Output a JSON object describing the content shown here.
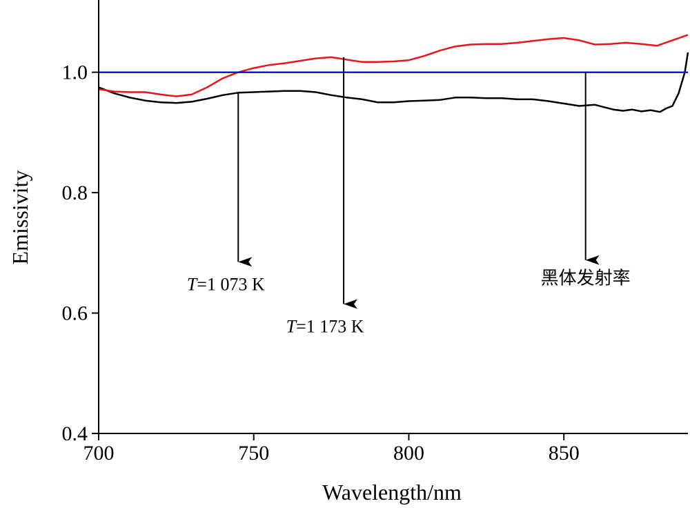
{
  "chart_data": {
    "type": "line",
    "title": "",
    "xlabel": "Wavelength/nm",
    "ylabel": "Emissivity",
    "xlim": [
      700,
      890
    ],
    "ylim": [
      0.4,
      1.12
    ],
    "x_ticks": [
      "700",
      "750",
      "800",
      "850"
    ],
    "y_ticks": [
      "0.4",
      "0.6",
      "0.8",
      "1.0"
    ],
    "grid": false,
    "series": [
      {
        "color": "#000000",
        "points": [
          [
            700,
            0.975
          ],
          [
            705,
            0.965
          ],
          [
            710,
            0.958
          ],
          [
            715,
            0.953
          ],
          [
            720,
            0.95
          ],
          [
            725,
            0.949
          ],
          [
            730,
            0.951
          ],
          [
            735,
            0.956
          ],
          [
            740,
            0.962
          ],
          [
            745,
            0.966
          ],
          [
            750,
            0.967
          ],
          [
            755,
            0.968
          ],
          [
            760,
            0.969
          ],
          [
            765,
            0.969
          ],
          [
            770,
            0.967
          ],
          [
            775,
            0.962
          ],
          [
            780,
            0.958
          ],
          [
            785,
            0.955
          ],
          [
            790,
            0.95
          ],
          [
            795,
            0.95
          ],
          [
            800,
            0.952
          ],
          [
            805,
            0.953
          ],
          [
            810,
            0.954
          ],
          [
            815,
            0.958
          ],
          [
            820,
            0.958
          ],
          [
            825,
            0.957
          ],
          [
            830,
            0.957
          ],
          [
            835,
            0.955
          ],
          [
            840,
            0.955
          ],
          [
            845,
            0.952
          ],
          [
            850,
            0.948
          ],
          [
            855,
            0.944
          ],
          [
            860,
            0.946
          ],
          [
            863,
            0.942
          ],
          [
            866,
            0.938
          ],
          [
            869,
            0.936
          ],
          [
            872,
            0.938
          ],
          [
            875,
            0.935
          ],
          [
            878,
            0.937
          ],
          [
            881,
            0.934
          ],
          [
            883,
            0.94
          ],
          [
            885,
            0.944
          ],
          [
            887,
            0.965
          ],
          [
            889,
            1.0
          ],
          [
            890,
            1.033
          ]
        ]
      },
      {
        "color": "#e8141e",
        "points": [
          [
            700,
            0.972
          ],
          [
            705,
            0.968
          ],
          [
            710,
            0.967
          ],
          [
            715,
            0.967
          ],
          [
            720,
            0.963
          ],
          [
            725,
            0.96
          ],
          [
            730,
            0.963
          ],
          [
            735,
            0.975
          ],
          [
            740,
            0.99
          ],
          [
            745,
            1.0
          ],
          [
            750,
            1.007
          ],
          [
            755,
            1.012
          ],
          [
            760,
            1.015
          ],
          [
            765,
            1.019
          ],
          [
            770,
            1.023
          ],
          [
            775,
            1.025
          ],
          [
            780,
            1.021
          ],
          [
            785,
            1.017
          ],
          [
            790,
            1.017
          ],
          [
            795,
            1.018
          ],
          [
            800,
            1.02
          ],
          [
            805,
            1.027
          ],
          [
            810,
            1.036
          ],
          [
            815,
            1.043
          ],
          [
            820,
            1.046
          ],
          [
            825,
            1.047
          ],
          [
            830,
            1.047
          ],
          [
            835,
            1.049
          ],
          [
            840,
            1.052
          ],
          [
            845,
            1.055
          ],
          [
            850,
            1.057
          ],
          [
            855,
            1.053
          ],
          [
            860,
            1.046
          ],
          [
            865,
            1.047
          ],
          [
            870,
            1.049
          ],
          [
            875,
            1.047
          ],
          [
            880,
            1.044
          ],
          [
            885,
            1.053
          ],
          [
            890,
            1.062
          ]
        ]
      },
      {
        "color": "#1414e0",
        "points": [
          [
            700,
            1.0
          ],
          [
            890,
            1.0
          ]
        ]
      }
    ],
    "annotations": [
      {
        "label_italic": "T",
        "label_rest": "=1 073 K",
        "arrow_x": 745,
        "arrow_from": 0.967,
        "arrow_to": 0.685,
        "text_x": 741,
        "text_y": 0.638
      },
      {
        "label_italic": "T",
        "label_rest": "=1 173 K",
        "arrow_x": 779,
        "arrow_from": 1.025,
        "arrow_to": 0.615,
        "text_x": 773,
        "text_y": 0.568
      },
      {
        "label_italic": "",
        "label_rest": "黑体发射率",
        "arrow_x": 857,
        "arrow_from": 1.0,
        "arrow_to": 0.688,
        "text_x": 857,
        "text_y": 0.648
      }
    ]
  }
}
